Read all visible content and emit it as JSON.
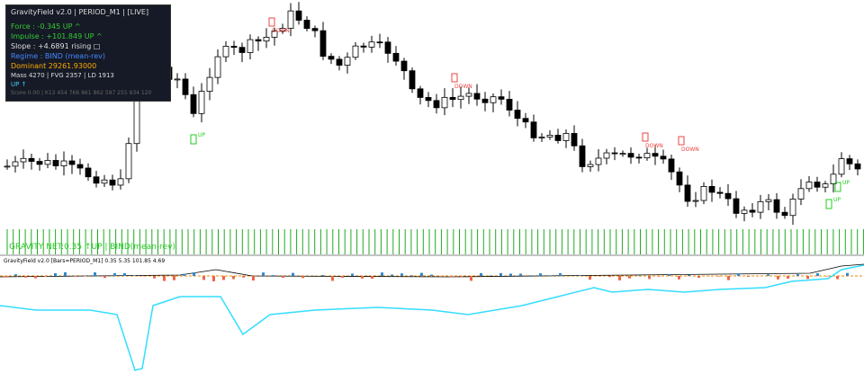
{
  "panel": {
    "title": "GravityField v2.0 | PERIOD_M1 | [LIVE]",
    "lines": [
      "Force : -0.345  UP ^",
      "Impulse : +101.849  UP ^",
      "Slope : +4.6891  rising □",
      "Regime : BIND (mean-rev)",
      "Dominant 29261.93000",
      "Mass 4270 | FVG 2357 | LD 1913",
      "UP ↑",
      "Score 0.00 | K13 454 766 861 862 597 255 934 120"
    ]
  },
  "markers": {
    "down": "DOWN",
    "up": "UP"
  },
  "status": "GRAVITY NET:0.35 ↑UP | BIND(mean-rev)",
  "indicator": {
    "title": "GravityField v2.0 [Bars=PERIOD_M1] 0.35 5.35 101.85 4.69"
  }
}
